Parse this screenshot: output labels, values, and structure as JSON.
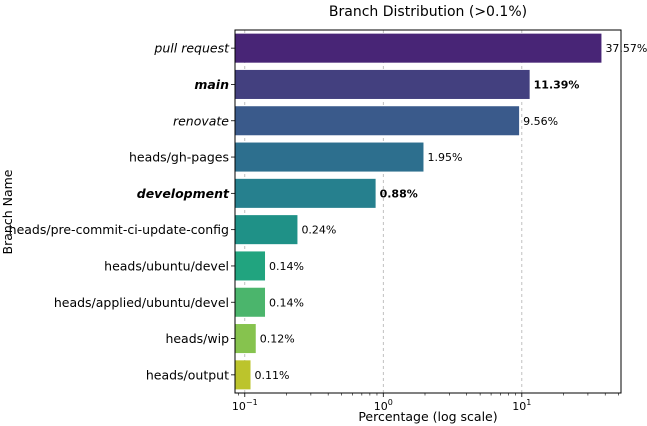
{
  "chart_data": {
    "type": "bar",
    "orientation": "horizontal",
    "title": "Branch Distribution (>0.1%)",
    "xlabel": "Percentage (log scale)",
    "ylabel": "Branch Name",
    "x_scale": "log",
    "xlim": [
      0.085,
      52
    ],
    "grid": "x-major-dashed",
    "x_ticks": [
      {
        "value": 0.1,
        "base": "10",
        "exp": "−1"
      },
      {
        "value": 1,
        "base": "10",
        "exp": "0"
      },
      {
        "value": 10,
        "base": "10",
        "exp": "1"
      }
    ],
    "bars": [
      {
        "category": "pull request",
        "value": 37.57,
        "label": "37.57%",
        "style": "italic",
        "color": "#482576"
      },
      {
        "category": "main",
        "value": 11.39,
        "label": "11.39%",
        "style": "bold-italic",
        "color": "#43407f"
      },
      {
        "category": "renovate",
        "value": 9.56,
        "label": "9.56%",
        "style": "italic",
        "color": "#3a5a8b"
      },
      {
        "category": "heads/gh-pages",
        "value": 1.95,
        "label": "1.95%",
        "style": "normal",
        "color": "#2d6f8e"
      },
      {
        "category": "development",
        "value": 0.88,
        "label": "0.88%",
        "style": "bold-italic",
        "color": "#26808e"
      },
      {
        "category": "heads/pre-commit-ci-update-config",
        "value": 0.24,
        "label": "0.24%",
        "style": "normal",
        "color": "#1f9187"
      },
      {
        "category": "heads/ubuntu/devel",
        "value": 0.14,
        "label": "0.14%",
        "style": "normal",
        "color": "#21a47f"
      },
      {
        "category": "heads/applied/ubuntu/devel",
        "value": 0.14,
        "label": "0.14%",
        "style": "normal",
        "color": "#4bb56c"
      },
      {
        "category": "heads/wip",
        "value": 0.12,
        "label": "0.12%",
        "style": "normal",
        "color": "#86c34e"
      },
      {
        "category": "heads/output",
        "value": 0.11,
        "label": "0.11%",
        "style": "normal",
        "color": "#bcc42c"
      }
    ]
  }
}
